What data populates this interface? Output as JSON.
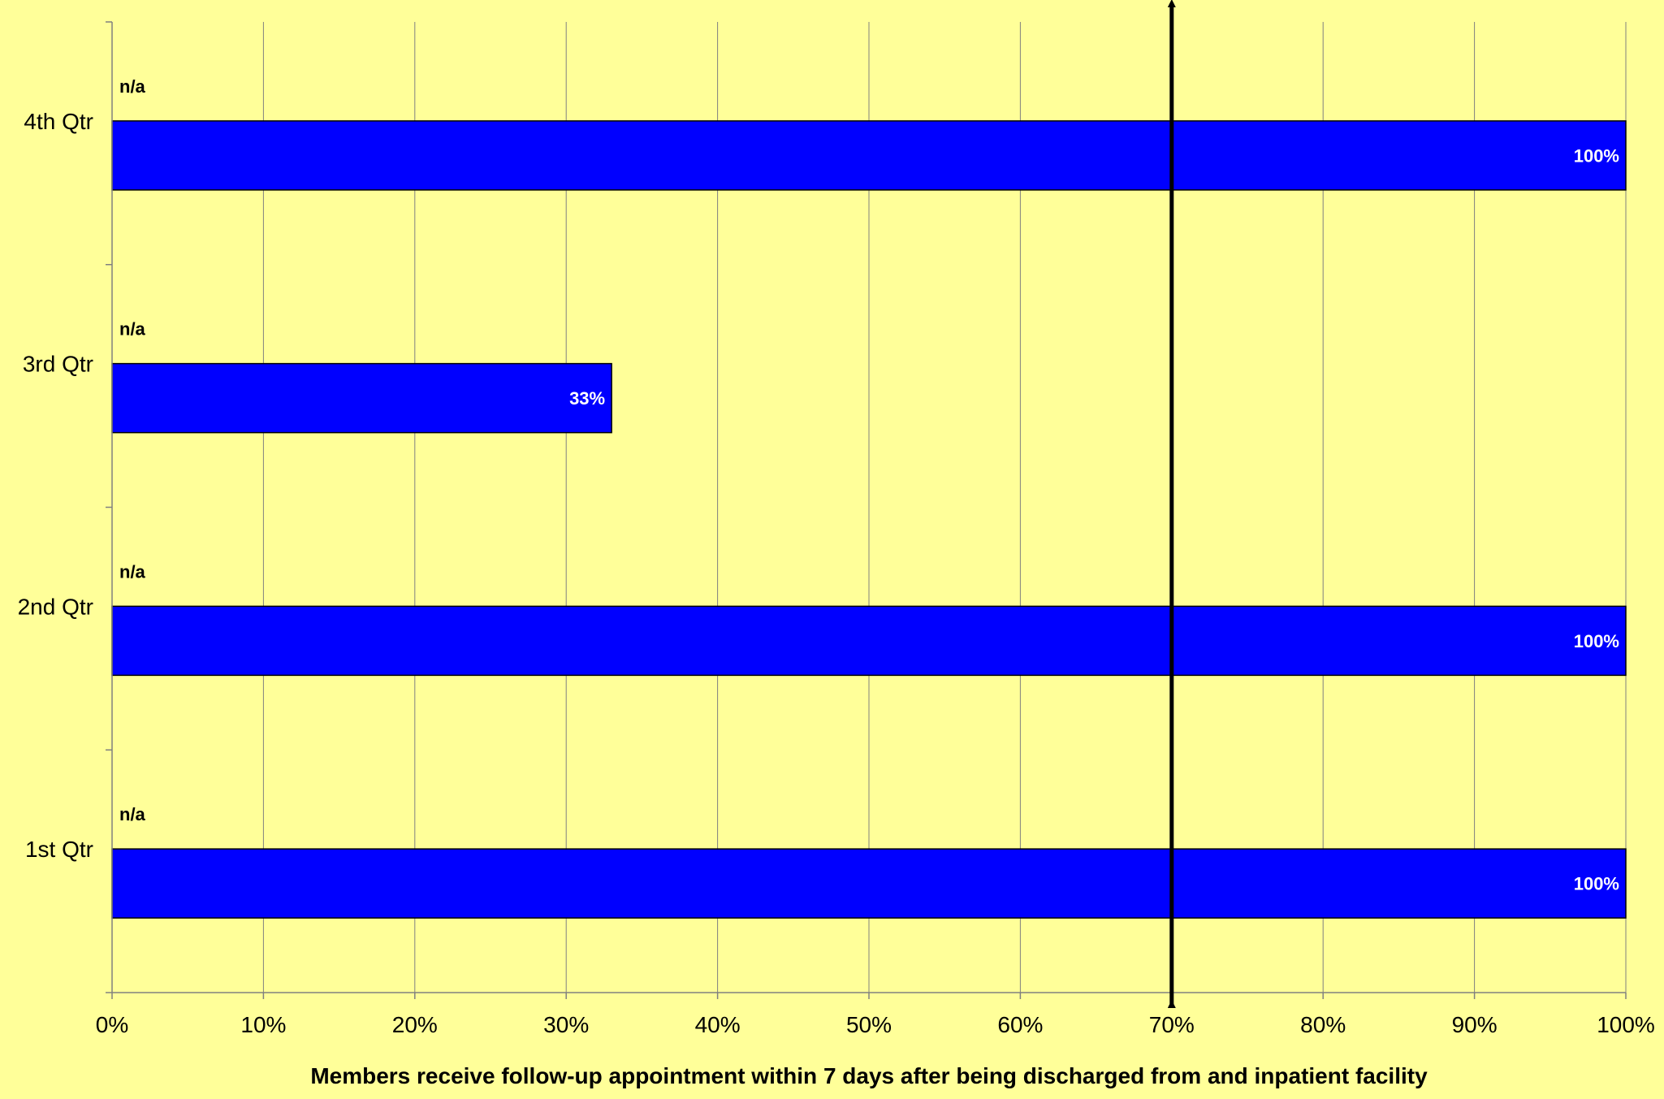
{
  "chart_data": {
    "type": "bar",
    "orientation": "horizontal",
    "categories": [
      "1st Qtr",
      "2nd Qtr",
      "3rd Qtr",
      "4th Qtr"
    ],
    "series": [
      {
        "values": [
          100,
          100,
          33,
          100
        ],
        "data_labels": [
          "100%",
          "100%",
          "33%",
          "100%"
        ],
        "color": "#0000FF"
      }
    ],
    "secondary_labels": [
      "n/a",
      "n/a",
      "n/a",
      "n/a"
    ],
    "xlabel": "Members receive follow-up appointment within 7 days after being discharged from and inpatient facility",
    "ylabel": "",
    "xlim": [
      0,
      100
    ],
    "x_ticks": [
      0,
      10,
      20,
      30,
      40,
      50,
      60,
      70,
      80,
      90,
      100
    ],
    "x_tick_labels": [
      "0%",
      "10%",
      "20%",
      "30%",
      "40%",
      "50%",
      "60%",
      "70%",
      "80%",
      "90%",
      "100%"
    ],
    "target_line": {
      "value": 70,
      "style": "double-headed arrow",
      "color": "#000000"
    },
    "grid": "vertical",
    "legend": "none",
    "colors": {
      "background": "#FFFF99",
      "bar": "#0000FF",
      "gridline": "#808080"
    }
  }
}
